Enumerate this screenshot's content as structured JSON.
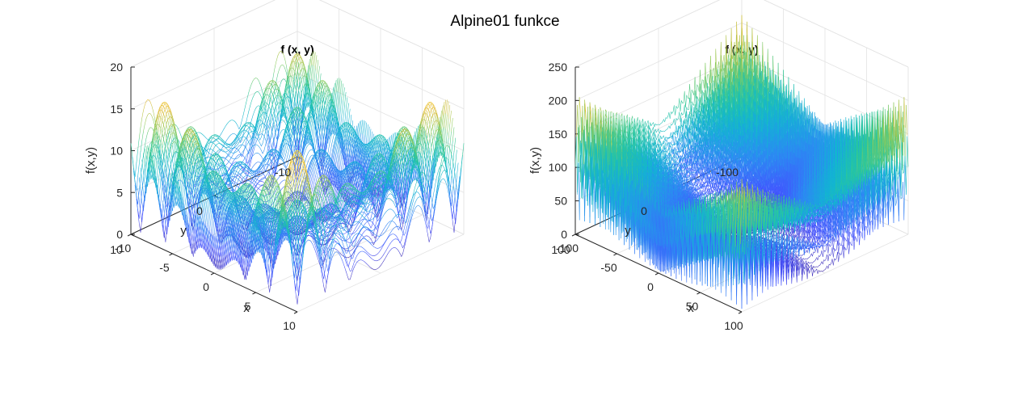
{
  "figure": {
    "title": "Alpine01 funkce"
  },
  "colors": {
    "colormap": [
      "#3e26a8",
      "#4352ff",
      "#2d8af3",
      "#12b5d3",
      "#2ac79c",
      "#91cb5a",
      "#e4ba32",
      "#f9d21f"
    ],
    "axis": "#262626",
    "grid": "#e3e3e3"
  },
  "chart_data": [
    {
      "type": "surface",
      "function": "f(x,y) = |x*sin(x) + 0.1*x| + |y*sin(y) + 0.1*y|",
      "title": "f (x, y)",
      "xlabel": "x",
      "ylabel": "y",
      "zlabel": "f(x,y)",
      "xlim": [
        -10,
        10
      ],
      "ylim": [
        -10,
        10
      ],
      "zlim": [
        0,
        20
      ],
      "xticks": [
        -10,
        -5,
        0,
        5,
        10
      ],
      "yticks": [
        -10,
        0,
        10
      ],
      "zticks": [
        0,
        5,
        10,
        15,
        20
      ],
      "xtick_labels": [
        "-10",
        "-5",
        "0",
        "5",
        "10"
      ],
      "ytick_labels": [
        "-10",
        "0",
        "10"
      ],
      "ztick_labels": [
        "0",
        "5",
        "10",
        "15",
        "20"
      ],
      "grid": true,
      "mesh_samples": 121
    },
    {
      "type": "surface",
      "function": "f(x,y) = |x*sin(x) + 0.1*x| + |y*sin(y) + 0.1*y|",
      "title": "f (x, y)",
      "xlabel": "x",
      "ylabel": "y",
      "zlabel": "f(x,y)",
      "xlim": [
        -100,
        100
      ],
      "ylim": [
        -100,
        100
      ],
      "zlim": [
        0,
        250
      ],
      "xticks": [
        -100,
        -50,
        0,
        50,
        100
      ],
      "yticks": [
        -100,
        0,
        100
      ],
      "zticks": [
        0,
        50,
        100,
        150,
        200,
        250
      ],
      "xtick_labels": [
        "-100",
        "-50",
        "0",
        "50",
        "100"
      ],
      "ytick_labels": [
        "-100",
        "0",
        "100"
      ],
      "ztick_labels": [
        "0",
        "50",
        "100",
        "150",
        "200",
        "250"
      ],
      "grid": true,
      "mesh_samples": 161
    }
  ]
}
